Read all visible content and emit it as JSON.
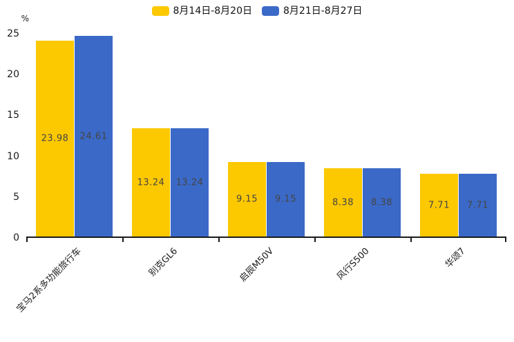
{
  "chart_data": {
    "type": "bar",
    "title": "",
    "unit_label": "%",
    "categories": [
      "宝马2系多功能旅行车",
      "别克GL6",
      "启辰M50V",
      "风行S500",
      "华颂7"
    ],
    "series": [
      {
        "name": "8月14日-8月20日",
        "color": "#fcc800",
        "values": [
          23.98,
          13.24,
          9.15,
          8.38,
          7.71
        ]
      },
      {
        "name": "8月21日-8月27日",
        "color": "#3b69c7",
        "values": [
          24.61,
          13.24,
          9.15,
          8.38,
          7.71
        ]
      }
    ],
    "value_labels": [
      "23.98",
      "24.61",
      "13.24",
      "13.24",
      "9.15",
      "9.15",
      "8.38",
      "8.38",
      "7.71",
      "7.71"
    ],
    "ylim": [
      0,
      25
    ],
    "yticks": [
      0,
      5,
      10,
      15,
      20,
      25
    ],
    "grid": false,
    "legend_position": "top-center",
    "value_label_position": "inside-middle",
    "axis_color": "#1a1a1a",
    "value_label_color": "#454545"
  }
}
